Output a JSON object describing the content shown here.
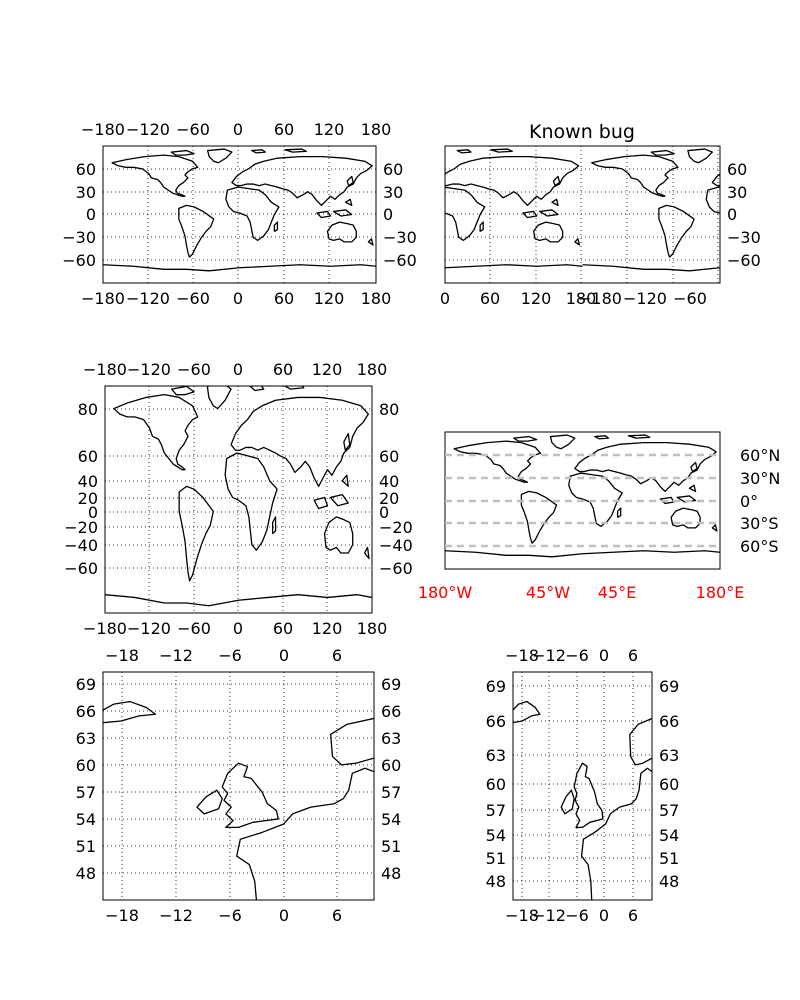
{
  "colors": {
    "red_tick": "#ff0000",
    "dashed_grid": "#c0c0c0",
    "coastline": "#000000"
  },
  "panels": [
    {
      "id": "world-a",
      "title": "",
      "xticks_top": [
        "−180",
        "−120",
        "−60",
        "0",
        "60",
        "120",
        "180"
      ],
      "xticks_bottom": [
        "−180",
        "−120",
        "−60",
        "0",
        "60",
        "120",
        "180"
      ],
      "yticks_left": [
        "60",
        "30",
        "0",
        "−30",
        "−60"
      ],
      "yticks_right": [
        "60",
        "30",
        "0",
        "−30",
        "−60"
      ]
    },
    {
      "id": "world-b",
      "title": "Known bug",
      "xticks_bottom": [
        "0",
        "60",
        "120",
        "180",
        "−180",
        "−120",
        "−60"
      ],
      "yticks_right": [
        "60",
        "30",
        "0",
        "−30",
        "−60"
      ]
    },
    {
      "id": "world-c",
      "title": "",
      "xticks_top": [
        "−180",
        "−120",
        "−60",
        "0",
        "60",
        "120",
        "180"
      ],
      "xticks_bottom": [
        "−180",
        "−120",
        "−60",
        "0",
        "60",
        "120",
        "180"
      ],
      "yticks_left": [
        "80",
        "60",
        "40",
        "20",
        "0",
        "−20",
        "−40",
        "−60"
      ],
      "yticks_right": [
        "80",
        "60",
        "40",
        "20",
        "0",
        "−20",
        "−40",
        "−60"
      ]
    },
    {
      "id": "world-d",
      "title": "",
      "xticks_bottom": [
        "180°W",
        "45°W",
        "45°E",
        "180°E"
      ],
      "yticks_right": [
        "60°N",
        "30°N",
        "0°",
        "30°S",
        "60°S"
      ]
    },
    {
      "id": "uk-a",
      "title": "",
      "xticks_top": [
        "−18",
        "−12",
        "−6",
        "0",
        "6"
      ],
      "xticks_bottom": [
        "−18",
        "−12",
        "−6",
        "0",
        "6"
      ],
      "yticks_left": [
        "69",
        "66",
        "63",
        "60",
        "57",
        "54",
        "51",
        "48"
      ],
      "yticks_right": [
        "69",
        "66",
        "63",
        "60",
        "57",
        "54",
        "51",
        "48"
      ]
    },
    {
      "id": "uk-b",
      "title": "",
      "xticks_top": [
        "−18",
        "−12",
        "−6",
        "0",
        "6"
      ],
      "xticks_bottom": [
        "−18",
        "−12",
        "−6",
        "0",
        "6"
      ],
      "yticks_left": [
        "69",
        "66",
        "63",
        "60",
        "57",
        "54",
        "51",
        "48"
      ],
      "yticks_right": [
        "69",
        "66",
        "63",
        "60",
        "57",
        "54",
        "51",
        "48"
      ]
    }
  ]
}
